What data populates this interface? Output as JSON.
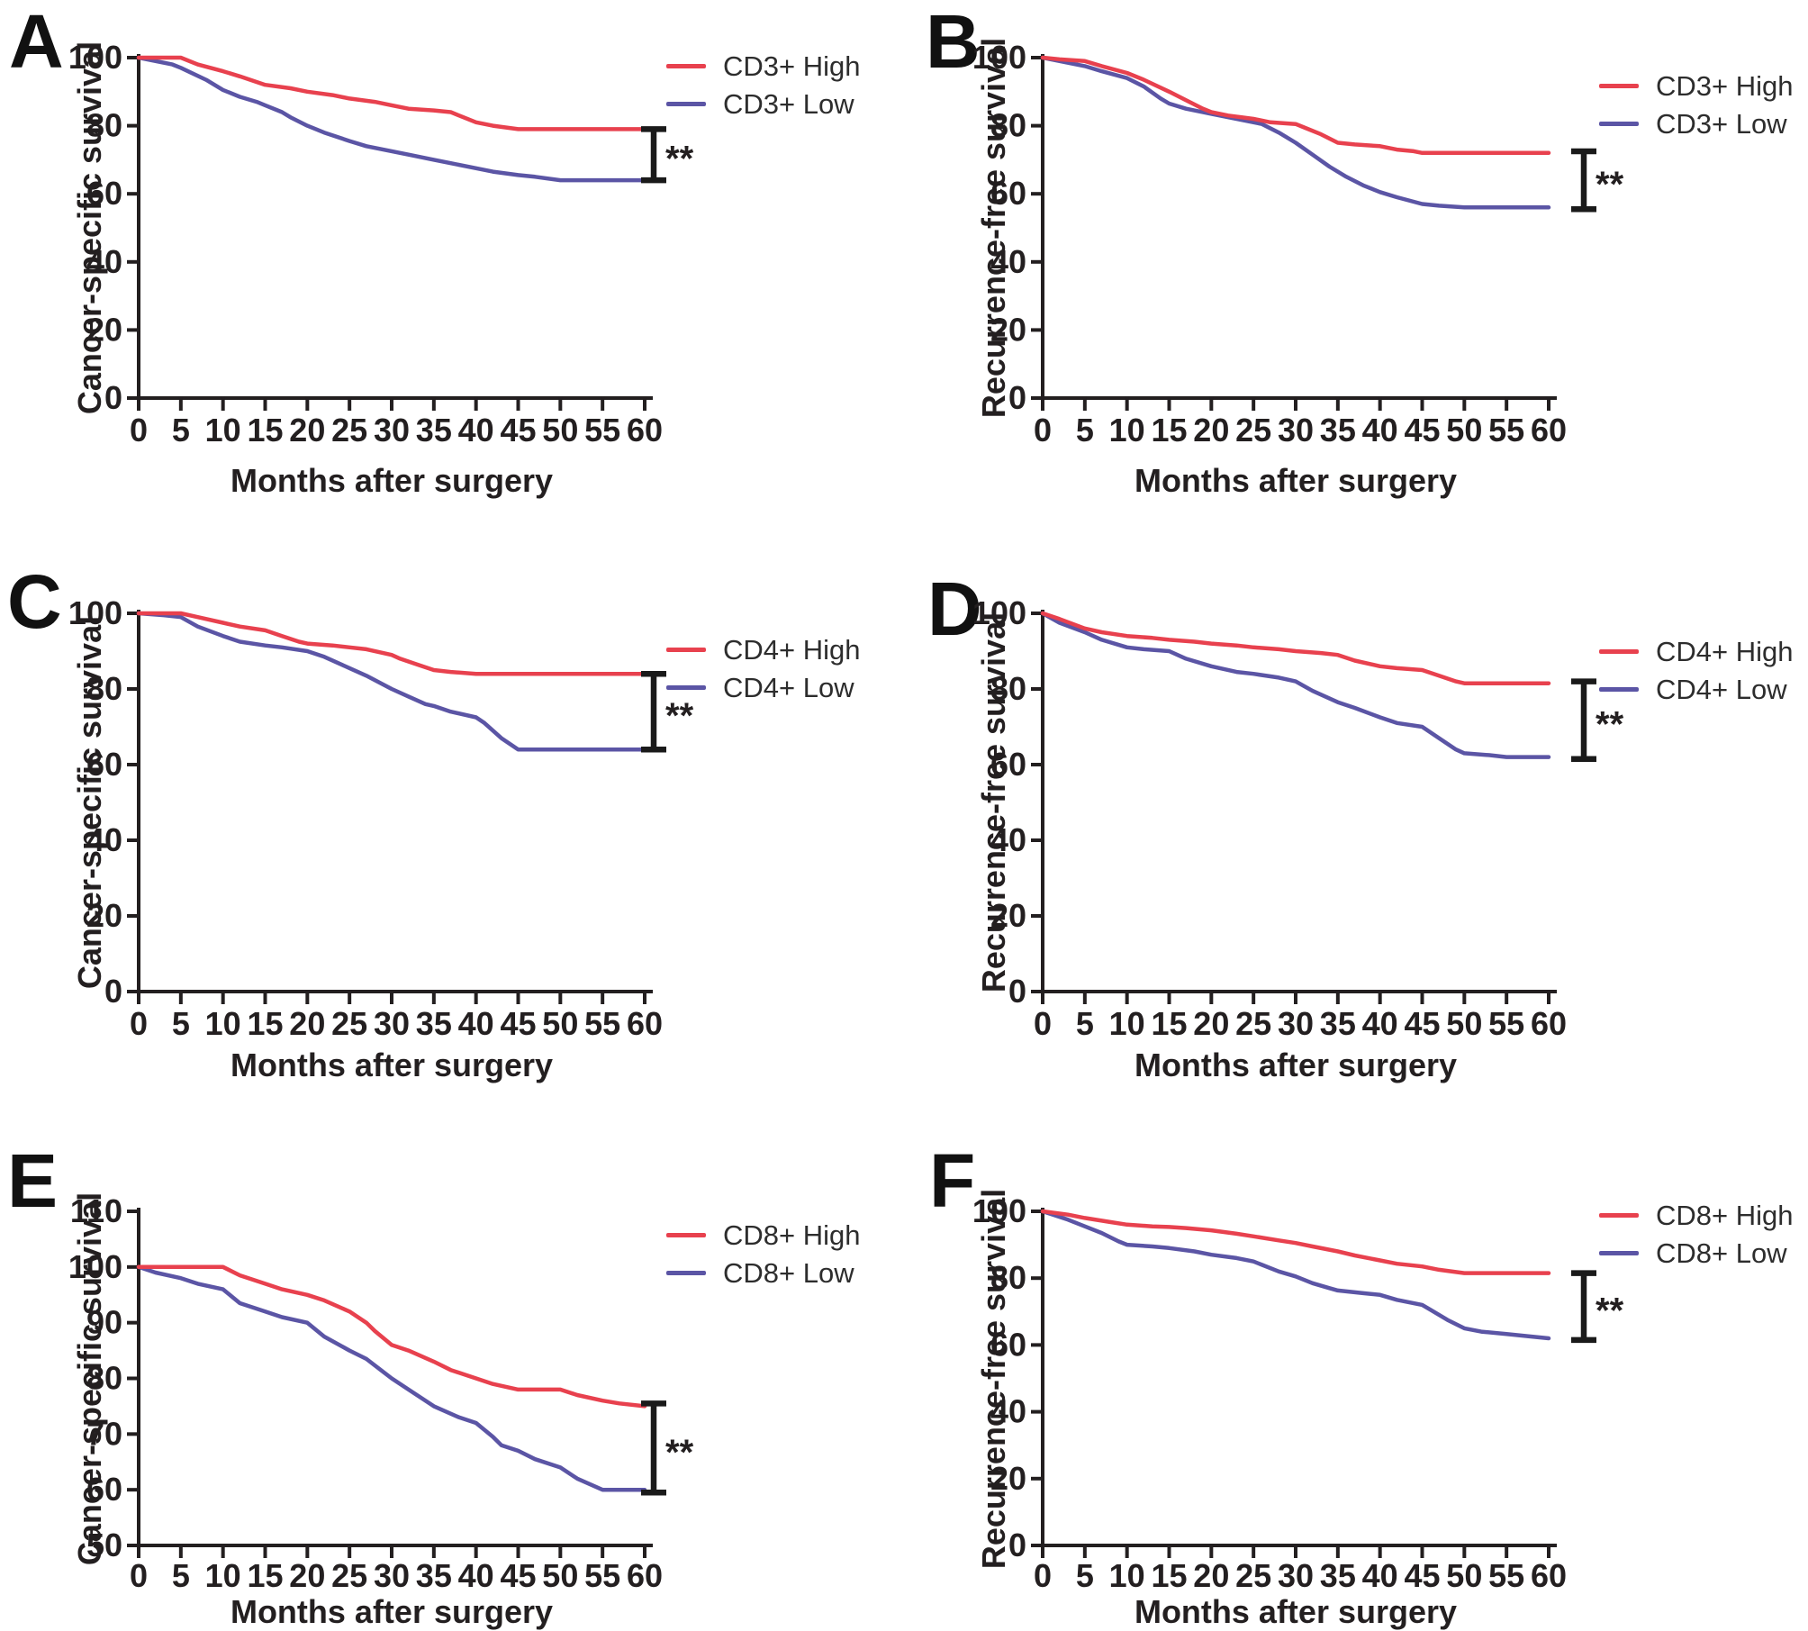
{
  "figure_colors": {
    "high_line": "#e8414e",
    "low_line": "#5b55a5",
    "axis": "#231f20",
    "background": "#ffffff"
  },
  "chart_data": [
    {
      "panel": "A",
      "type": "line",
      "xlabel": "Months after surgery",
      "ylabel": "Cancer-specific survival",
      "xlim": [
        0,
        60
      ],
      "ylim": [
        0,
        100
      ],
      "x_ticks": [
        0,
        5,
        10,
        15,
        20,
        25,
        30,
        35,
        40,
        45,
        50,
        55,
        60
      ],
      "y_ticks": [
        0,
        20,
        40,
        60,
        80,
        100
      ],
      "grid": false,
      "legend_position": "top-right",
      "significance": "**",
      "bracket": {
        "top": 79,
        "bottom": 64
      },
      "series": [
        {
          "name": "CD3+ High",
          "color": "#e8414e",
          "x": [
            0,
            3,
            5,
            7,
            10,
            12,
            15,
            18,
            20,
            23,
            25,
            28,
            30,
            32,
            35,
            37,
            38,
            40,
            42,
            45,
            50,
            55,
            60
          ],
          "y": [
            100,
            100,
            100,
            98,
            96,
            94.5,
            92,
            91,
            90,
            89,
            88,
            87,
            86,
            85,
            84.5,
            84,
            83,
            81,
            80,
            79,
            79,
            79,
            79
          ]
        },
        {
          "name": "CD3+ Low",
          "color": "#5b55a5",
          "x": [
            0,
            2,
            4,
            5,
            8,
            10,
            12,
            14,
            15,
            17,
            18,
            20,
            22,
            25,
            27,
            30,
            32,
            35,
            37,
            40,
            42,
            45,
            47,
            50,
            55,
            60
          ],
          "y": [
            100,
            99,
            98,
            97,
            93.5,
            90.5,
            88.5,
            87,
            86,
            84,
            82.5,
            80,
            78,
            75.5,
            74,
            72.5,
            71.5,
            70,
            69,
            67.5,
            66.5,
            65.5,
            65,
            64,
            64,
            64
          ]
        }
      ]
    },
    {
      "panel": "B",
      "type": "line",
      "xlabel": "Months after surgery",
      "ylabel": "Recurrence-free survival",
      "xlim": [
        0,
        60
      ],
      "ylim": [
        0,
        100
      ],
      "x_ticks": [
        0,
        5,
        10,
        15,
        20,
        25,
        30,
        35,
        40,
        45,
        50,
        55,
        60
      ],
      "y_ticks": [
        0,
        20,
        40,
        60,
        80,
        100
      ],
      "grid": false,
      "legend_position": "top-right",
      "significance": "**",
      "bracket": {
        "top": 72.5,
        "bottom": 55.5
      },
      "series": [
        {
          "name": "CD3+ High",
          "color": "#e8414e",
          "x": [
            0,
            2,
            5,
            7,
            10,
            12,
            15,
            17,
            19,
            20,
            22,
            25,
            27,
            30,
            31,
            33,
            35,
            37,
            40,
            42,
            44,
            45,
            50,
            55,
            60
          ],
          "y": [
            100,
            99.5,
            99,
            97.5,
            95.5,
            93.5,
            90,
            87.5,
            85,
            84,
            83,
            82,
            81,
            80.5,
            79.5,
            77.5,
            75,
            74.5,
            74,
            73,
            72.5,
            72,
            72,
            72,
            72
          ]
        },
        {
          "name": "CD3+ Low",
          "color": "#5b55a5",
          "x": [
            0,
            2,
            5,
            7,
            10,
            12,
            14,
            15,
            17,
            20,
            22,
            25,
            26,
            28,
            30,
            32,
            34,
            36,
            38,
            40,
            42,
            45,
            47,
            50,
            55,
            60
          ],
          "y": [
            100,
            99,
            97.5,
            96,
            94,
            91.5,
            88,
            86.5,
            85,
            83.5,
            82.5,
            81,
            80.5,
            78,
            75,
            71.5,
            68,
            65,
            62.5,
            60.5,
            59,
            57,
            56.5,
            56,
            56,
            56
          ]
        }
      ]
    },
    {
      "panel": "C",
      "type": "line",
      "xlabel": "Months after surgery",
      "ylabel": "Cancer-specific survival",
      "xlim": [
        0,
        60
      ],
      "ylim": [
        0,
        100
      ],
      "x_ticks": [
        0,
        5,
        10,
        15,
        20,
        25,
        30,
        35,
        40,
        45,
        50,
        55,
        60
      ],
      "y_ticks": [
        0,
        20,
        40,
        60,
        80,
        100
      ],
      "grid": false,
      "legend_position": "top-right",
      "significance": "**",
      "bracket": {
        "top": 84,
        "bottom": 64
      },
      "series": [
        {
          "name": "CD4+ High",
          "color": "#e8414e",
          "x": [
            0,
            3,
            5,
            7,
            10,
            12,
            15,
            17,
            19,
            20,
            23,
            25,
            27,
            30,
            31,
            33,
            35,
            37,
            40,
            45,
            50,
            55,
            60
          ],
          "y": [
            100,
            100,
            100,
            99,
            97.5,
            96.5,
            95.5,
            94,
            92.5,
            92,
            91.5,
            91,
            90.5,
            89,
            88,
            86.5,
            85,
            84.5,
            84,
            84,
            84,
            84,
            84
          ]
        },
        {
          "name": "CD4+ Low",
          "color": "#5b55a5",
          "x": [
            0,
            3,
            5,
            7,
            10,
            12,
            15,
            17,
            20,
            22,
            24,
            25,
            27,
            30,
            32,
            34,
            35,
            37,
            40,
            41,
            43,
            45,
            50,
            55,
            60
          ],
          "y": [
            100,
            99.5,
            99,
            96.5,
            94,
            92.5,
            91.5,
            91,
            90,
            88.5,
            86.5,
            85.5,
            83.5,
            80,
            78,
            76,
            75.5,
            74,
            72.5,
            71,
            67,
            64,
            64,
            64,
            64
          ]
        }
      ]
    },
    {
      "panel": "D",
      "type": "line",
      "xlabel": "Months after surgery",
      "ylabel": "Recurrence-free survival",
      "xlim": [
        0,
        60
      ],
      "ylim": [
        0,
        100
      ],
      "x_ticks": [
        0,
        5,
        10,
        15,
        20,
        25,
        30,
        35,
        40,
        45,
        50,
        55,
        60
      ],
      "y_ticks": [
        0,
        20,
        40,
        60,
        80,
        100
      ],
      "grid": false,
      "legend_position": "top-right",
      "significance": "**",
      "bracket": {
        "top": 82,
        "bottom": 61.5
      },
      "series": [
        {
          "name": "CD4+ High",
          "color": "#e8414e",
          "x": [
            0,
            2,
            5,
            7,
            10,
            13,
            15,
            18,
            20,
            23,
            25,
            28,
            30,
            33,
            35,
            37,
            40,
            42,
            45,
            47,
            49,
            50,
            55,
            60
          ],
          "y": [
            100,
            98.5,
            96,
            95,
            94,
            93.5,
            93,
            92.5,
            92,
            91.5,
            91,
            90.5,
            90,
            89.5,
            89,
            87.5,
            86,
            85.5,
            85,
            83.5,
            82,
            81.5,
            81.5,
            81.5
          ]
        },
        {
          "name": "CD4+ Low",
          "color": "#5b55a5",
          "x": [
            0,
            2,
            5,
            7,
            10,
            12,
            15,
            17,
            20,
            23,
            25,
            28,
            30,
            32,
            35,
            37,
            40,
            42,
            45,
            47,
            49,
            50,
            53,
            55,
            60
          ],
          "y": [
            100,
            97.5,
            95,
            93,
            91,
            90.5,
            90,
            88,
            86,
            84.5,
            84,
            83,
            82,
            79.5,
            76.5,
            75,
            72.5,
            71,
            70,
            67,
            64,
            63,
            62.5,
            62,
            62
          ]
        }
      ]
    },
    {
      "panel": "E",
      "type": "line",
      "xlabel": "Months after surgery",
      "ylabel": "Cancer-specific survival",
      "xlim": [
        0,
        60
      ],
      "ylim": [
        50,
        110
      ],
      "x_ticks": [
        0,
        5,
        10,
        15,
        20,
        25,
        30,
        35,
        40,
        45,
        50,
        55,
        60
      ],
      "y_ticks": [
        50,
        60,
        70,
        80,
        90,
        100,
        110
      ],
      "grid": false,
      "legend_position": "top-right",
      "significance": "**",
      "bracket": {
        "top": 75.5,
        "bottom": 59.5
      },
      "series": [
        {
          "name": "CD8+ High",
          "color": "#e8414e",
          "x": [
            0,
            5,
            10,
            12,
            15,
            17,
            20,
            22,
            25,
            27,
            28,
            30,
            32,
            35,
            37,
            40,
            42,
            45,
            48,
            50,
            52,
            55,
            57,
            60
          ],
          "y": [
            100,
            100,
            100,
            98.5,
            97,
            96,
            95,
            94,
            92,
            90,
            88.5,
            86,
            85,
            83,
            81.5,
            80,
            79,
            78,
            78,
            78,
            77,
            76,
            75.5,
            75
          ]
        },
        {
          "name": "CD8+ Low",
          "color": "#5b55a5",
          "x": [
            0,
            2,
            5,
            7,
            10,
            12,
            15,
            17,
            20,
            22,
            25,
            27,
            30,
            32,
            34,
            35,
            38,
            40,
            42,
            43,
            45,
            47,
            50,
            52,
            55,
            57,
            60
          ],
          "y": [
            100,
            99,
            98,
            97,
            96,
            93.5,
            92,
            91,
            90,
            87.5,
            85,
            83.5,
            80,
            78,
            76,
            75,
            73,
            72,
            69.5,
            68,
            67,
            65.5,
            64,
            62,
            60,
            60,
            60
          ]
        }
      ]
    },
    {
      "panel": "F",
      "type": "line",
      "xlabel": "Months after surgery",
      "ylabel": "Recurrence-free survival",
      "xlim": [
        0,
        60
      ],
      "ylim": [
        0,
        100
      ],
      "x_ticks": [
        0,
        5,
        10,
        15,
        20,
        25,
        30,
        35,
        40,
        45,
        50,
        55,
        60
      ],
      "y_ticks": [
        0,
        20,
        40,
        60,
        80,
        100
      ],
      "grid": false,
      "legend_position": "top-right",
      "significance": "**",
      "bracket": {
        "top": 81.5,
        "bottom": 61.5
      },
      "series": [
        {
          "name": "CD8+ High",
          "color": "#e8414e",
          "x": [
            0,
            3,
            5,
            8,
            10,
            13,
            15,
            17,
            20,
            23,
            25,
            28,
            30,
            32,
            35,
            37,
            40,
            42,
            45,
            47,
            50,
            55,
            60
          ],
          "y": [
            100,
            99,
            98,
            96.8,
            96,
            95.5,
            95.3,
            95,
            94.3,
            93.3,
            92.5,
            91.3,
            90.5,
            89.5,
            88,
            86.8,
            85.3,
            84.3,
            83.5,
            82.5,
            81.5,
            81.5,
            81.5
          ]
        },
        {
          "name": "CD8+ Low",
          "color": "#5b55a5",
          "x": [
            0,
            3,
            5,
            7,
            9,
            10,
            13,
            15,
            18,
            20,
            23,
            25,
            26,
            28,
            30,
            32,
            34,
            35,
            38,
            40,
            42,
            45,
            46,
            48,
            50,
            52,
            55,
            58,
            60
          ],
          "y": [
            100,
            97.5,
            95.5,
            93.5,
            91,
            90,
            89.5,
            89,
            88,
            87,
            86,
            85,
            84,
            82,
            80.5,
            78.5,
            77,
            76.3,
            75.5,
            75,
            73.5,
            72,
            70.5,
            67.5,
            65,
            64,
            63.3,
            62.5,
            62
          ]
        }
      ]
    }
  ]
}
